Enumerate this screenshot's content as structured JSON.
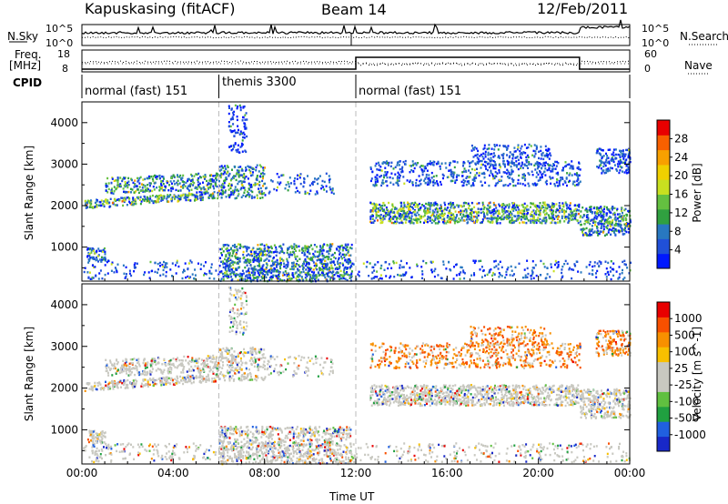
{
  "header": {
    "station": "Kapuskasing (fitACF)",
    "beam": "Beam 14",
    "date": "12/Feb/2011"
  },
  "top_panels": {
    "nsky_label": "N.Sky",
    "nsearch_label": "N.Search",
    "nsky_ticks": [
      "10^5",
      "10^0"
    ],
    "freq_label_1": "Freq.",
    "freq_label_2": "[MHz]",
    "freq_ticks": [
      "18",
      "8"
    ],
    "nave_label": "Nave",
    "nave_ticks": [
      "60",
      "0"
    ],
    "cpid_label": "CPID",
    "programs": [
      {
        "name": "normal (fast) 151",
        "start_hour": 0
      },
      {
        "name": "themis 3300",
        "start_hour": 6
      },
      {
        "name": "normal (fast) 151",
        "start_hour": 12
      }
    ]
  },
  "chart_data": [
    {
      "type": "heatmap",
      "name": "power",
      "xlabel": "Time UT",
      "ylabel": "Slant Range [km]",
      "x_ticks": [
        "00:00",
        "04:00",
        "08:00",
        "12:00",
        "16:00",
        "20:00",
        "00:00"
      ],
      "xlim_hours": [
        0,
        24
      ],
      "ylim": [
        180,
        4500
      ],
      "y_ticks": [
        1000,
        2000,
        3000,
        4000
      ],
      "colorbar": {
        "label": "Power [dB]",
        "ticks": [
          4,
          8,
          12,
          16,
          20,
          24,
          28
        ],
        "colors": [
          "#0018ff",
          "#2050d8",
          "#2878c0",
          "#30a040",
          "#64c040",
          "#c8e020",
          "#f0d000",
          "#f8a000",
          "#f86000",
          "#e80000"
        ]
      }
    },
    {
      "type": "heatmap",
      "name": "velocity",
      "xlabel": "Time UT",
      "ylabel": "Slant Range [km]",
      "x_ticks": [
        "00:00",
        "04:00",
        "08:00",
        "12:00",
        "16:00",
        "20:00",
        "00:00"
      ],
      "xlim_hours": [
        0,
        24
      ],
      "ylim": [
        180,
        4500
      ],
      "y_ticks": [
        1000,
        2000,
        3000,
        4000
      ],
      "colorbar": {
        "label": "Velocity [m s^-1]",
        "ticks": [
          "1000",
          "500",
          "100",
          "25",
          "-25",
          "-100",
          "-500",
          "-1000"
        ],
        "colors": [
          "#1828c8",
          "#2060e0",
          "#20a040",
          "#60c040",
          "#c8c8c0",
          "#c8c8c0",
          "#f8c000",
          "#f89000",
          "#f85000",
          "#e80000"
        ]
      }
    }
  ]
}
